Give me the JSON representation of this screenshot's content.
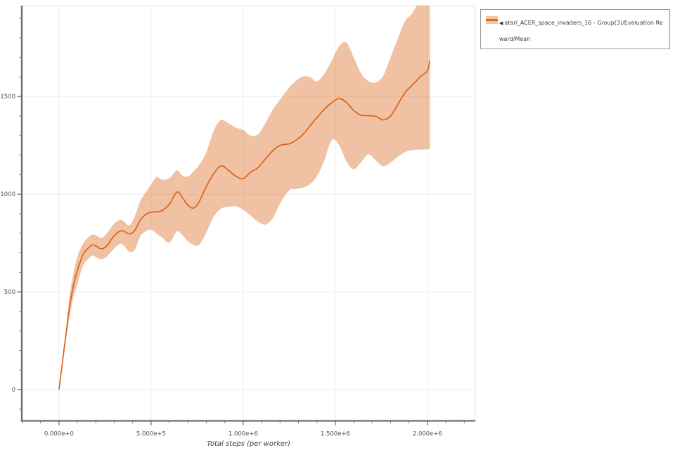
{
  "chart_data": {
    "type": "line",
    "title": "",
    "xlabel": "Total steps (per worker)",
    "ylabel": "",
    "x_axis": {
      "range": [
        -202000,
        2260000
      ],
      "tick_values": [
        0,
        500000,
        1000000,
        1500000,
        2000000
      ],
      "tick_labels": [
        "0.000e+0",
        "5.000e+5",
        "1.000e+6",
        "1.500e+6",
        "2.000e+6"
      ],
      "minor_tick_step": 100000
    },
    "y_axis": {
      "range": [
        -160,
        1965
      ],
      "tick_values": [
        0,
        500,
        1000,
        1500
      ],
      "tick_labels": [
        "0",
        "500",
        "1000",
        "1500"
      ],
      "minor_tick_step": 100
    },
    "legend": {
      "position": "top-right",
      "marker": "◀",
      "label": "atari_ACER_space_invaders_16 - Group(3)/Evaluation Reward/Mean"
    },
    "series": [
      {
        "name": "atari_ACER_space_invaders_16 - Group(3)/Evaluation Reward/Mean",
        "x": [
          0,
          20000,
          40000,
          60000,
          80000,
          100000,
          130000,
          160000,
          180000,
          200000,
          230000,
          260000,
          300000,
          340000,
          380000,
          410000,
          440000,
          470000,
          500000,
          530000,
          560000,
          600000,
          640000,
          670000,
          700000,
          730000,
          760000,
          800000,
          840000,
          880000,
          920000,
          960000,
          1000000,
          1040000,
          1080000,
          1120000,
          1160000,
          1200000,
          1250000,
          1280000,
          1320000,
          1360000,
          1400000,
          1440000,
          1480000,
          1520000,
          1560000,
          1600000,
          1640000,
          1680000,
          1720000,
          1760000,
          1800000,
          1840000,
          1880000,
          1920000,
          1960000,
          2000000,
          2013000
        ],
        "mean": [
          0,
          150,
          300,
          440,
          540,
          610,
          690,
          725,
          740,
          735,
          720,
          736,
          788,
          813,
          797,
          812,
          866,
          896,
          908,
          910,
          916,
          950,
          1011,
          982,
          943,
          929,
          960,
          1040,
          1105,
          1145,
          1122,
          1092,
          1080,
          1112,
          1136,
          1180,
          1222,
          1250,
          1258,
          1272,
          1302,
          1346,
          1392,
          1434,
          1468,
          1490,
          1470,
          1428,
          1404,
          1402,
          1398,
          1380,
          1400,
          1460,
          1522,
          1560,
          1600,
          1632,
          1682
        ],
        "band_low": [
          0,
          143,
          272,
          385,
          478,
          540,
          634,
          670,
          686,
          677,
          667,
          681,
          722,
          746,
          707,
          713,
          782,
          810,
          818,
          798,
          778,
          753,
          810,
          790,
          758,
          741,
          740,
          805,
          885,
          926,
          936,
          938,
          920,
          890,
          860,
          844,
          876,
          952,
          1020,
          1026,
          1032,
          1050,
          1092,
          1172,
          1276,
          1252,
          1168,
          1128,
          1164,
          1204,
          1172,
          1143,
          1162,
          1192,
          1216,
          1226,
          1228,
          1230,
          1231
        ],
        "band_high": [
          0,
          157,
          328,
          495,
          602,
          680,
          746,
          780,
          794,
          791,
          776,
          800,
          850,
          868,
          840,
          884,
          962,
          1008,
          1050,
          1088,
          1074,
          1082,
          1122,
          1094,
          1090,
          1116,
          1148,
          1215,
          1325,
          1380,
          1362,
          1340,
          1328,
          1300,
          1306,
          1362,
          1432,
          1484,
          1546,
          1574,
          1602,
          1600,
          1578,
          1616,
          1682,
          1756,
          1776,
          1700,
          1618,
          1578,
          1572,
          1606,
          1700,
          1798,
          1888,
          1928,
          2005,
          2070,
          2085
        ]
      }
    ],
    "colors": {
      "line": "#d9641a",
      "band": "rgba(217,100,26,0.40)",
      "grid": "#ededed",
      "plot_border": "#e0e0e0",
      "spine": "#6e6e6e",
      "tick_label": "#555555",
      "axis_title": "#3f3f3f"
    },
    "grid": true
  }
}
